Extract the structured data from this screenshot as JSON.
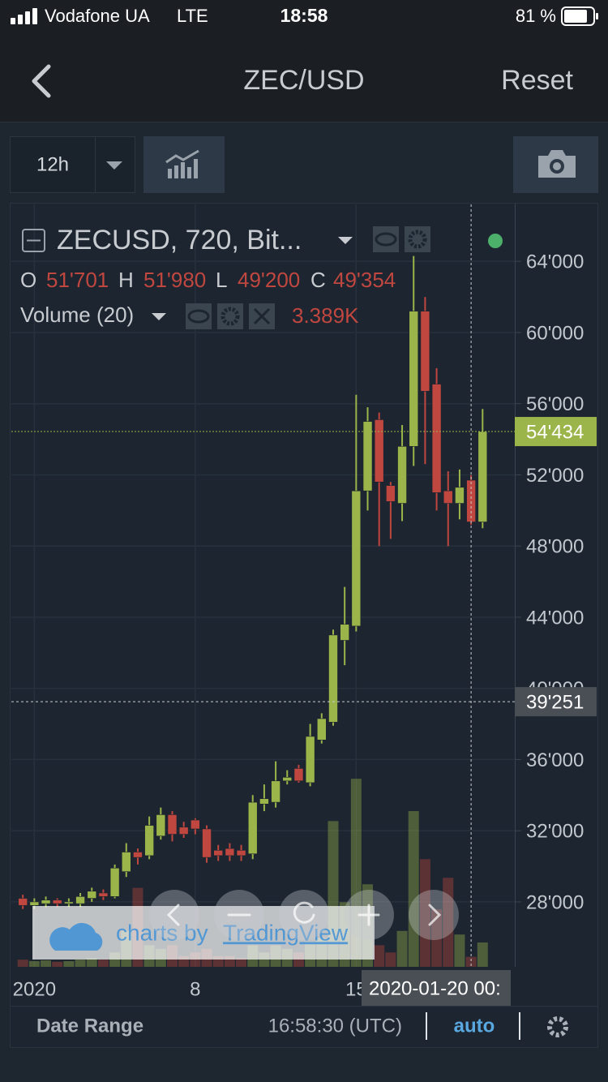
{
  "status_bar": {
    "carrier": "Vodafone UA",
    "network": "LTE",
    "time": "18:58",
    "battery": "81 %"
  },
  "header": {
    "title": "ZEC/USD",
    "reset": "Reset"
  },
  "toolbar": {
    "interval": "12h"
  },
  "chart_data": {
    "type": "candlestick",
    "title": "ZECUSD, 720, Bit...",
    "ohlc_legend": [
      {
        "name": "O",
        "label": "51'701"
      },
      {
        "name": "H",
        "label": "51'980"
      },
      {
        "name": "L",
        "label": "49'200"
      },
      {
        "name": "C",
        "label": "49'354"
      }
    ],
    "volume_label": "Volume (20)",
    "volume_value": "3.389K",
    "up_color": "#9bb54a",
    "down_color": "#c0473f",
    "x": [
      -0.5,
      0,
      0.5,
      1,
      1.5,
      2,
      2.5,
      3,
      3.5,
      4,
      4.5,
      5,
      5.5,
      6,
      6.5,
      7,
      7.5,
      8,
      8.5,
      9,
      9.5,
      10,
      10.5,
      11,
      11.5,
      12,
      12.5,
      13,
      13.5,
      14,
      14.5,
      15,
      15.5,
      16,
      16.5,
      17,
      17.5,
      18,
      18.5,
      19,
      19.5
    ],
    "open": [
      28200,
      27800,
      27900,
      28100,
      27900,
      27900,
      28200,
      28500,
      28300,
      29700,
      30800,
      30600,
      31700,
      32900,
      32200,
      32600,
      32100,
      30900,
      31000,
      30900,
      30700,
      33500,
      33600,
      34800,
      35500,
      34700,
      37100,
      38100,
      42700,
      43500,
      51100,
      55100,
      51400,
      50400,
      53600,
      61200,
      57100,
      51100,
      50400,
      51701,
      49354
    ],
    "high": [
      28400,
      28200,
      28300,
      28200,
      28200,
      28500,
      28800,
      28700,
      30100,
      31300,
      31000,
      32800,
      33300,
      33100,
      32500,
      32700,
      32300,
      31200,
      31300,
      31200,
      34000,
      34600,
      35900,
      35400,
      35700,
      38000,
      38600,
      43300,
      45700,
      56500,
      55800,
      55500,
      51600,
      54800,
      64300,
      62000,
      58000,
      52200,
      52300,
      51980,
      55700
    ],
    "low": [
      27600,
      27600,
      27700,
      27700,
      27700,
      27700,
      28000,
      28100,
      28200,
      29400,
      30100,
      30400,
      31500,
      31400,
      31600,
      31800,
      30200,
      30300,
      30300,
      30300,
      30400,
      33100,
      33300,
      34600,
      34700,
      34500,
      36900,
      37900,
      41300,
      43200,
      50000,
      48000,
      48400,
      49400,
      52500,
      52600,
      50000,
      48000,
      49500,
      49200,
      49000
    ],
    "close": [
      27800,
      28000,
      28100,
      27900,
      28000,
      28300,
      28600,
      28300,
      29900,
      30800,
      30500,
      32300,
      32900,
      31800,
      31800,
      32100,
      30500,
      30600,
      30600,
      30600,
      33600,
      33800,
      34800,
      35000,
      34800,
      37300,
      38300,
      43000,
      43600,
      51100,
      55000,
      51600,
      50500,
      53600,
      61200,
      56700,
      51000,
      50400,
      51300,
      49354,
      54434
    ],
    "volume": {
      "name": "Volume (20)",
      "values": [
        1.0,
        0.8,
        0.9,
        0.7,
        0.8,
        1.0,
        1.2,
        1.0,
        2.0,
        5.0,
        11.0,
        3.0,
        2.5,
        3.0,
        1.5,
        2.0,
        2.5,
        1.5,
        1.5,
        1.2,
        3.0,
        2.0,
        3.0,
        2.5,
        2.0,
        3.5,
        4.0,
        20.3,
        9.0,
        26.2,
        11.5,
        3.0,
        2.0,
        5.0,
        21.7,
        15.0,
        8.0,
        12.4,
        4.5,
        1.4,
        3.389
      ]
    },
    "xlim": [
      -1,
      20.9
    ],
    "xticks": [
      {
        "value": 0,
        "label": "2020"
      },
      {
        "value": 7,
        "label": "8"
      },
      {
        "value": 14,
        "label": "15"
      }
    ],
    "ylim": [
      24350,
      67200
    ],
    "yticks": [
      {
        "value": 28000,
        "label": "28'000"
      },
      {
        "value": 32000,
        "label": "32'000"
      },
      {
        "value": 36000,
        "label": "36'000"
      },
      {
        "value": 40000,
        "label": "40'000"
      },
      {
        "value": 44000,
        "label": "44'000"
      },
      {
        "value": 48000,
        "label": "48'000"
      },
      {
        "value": 52000,
        "label": "52'000"
      },
      {
        "value": 56000,
        "label": "56'000"
      },
      {
        "value": 60000,
        "label": "60'000"
      },
      {
        "value": 64000,
        "label": "64'000"
      }
    ],
    "grid": true,
    "last_price": {
      "value": 54434,
      "label": "54'434"
    },
    "crosshair": {
      "x": 19,
      "time": "2020-01-20 00:",
      "price": {
        "value": 39251,
        "label": "39'251"
      }
    },
    "watermark_prefix": "charts by",
    "watermark_link": "TradingView"
  },
  "footer": {
    "date_range": "Date Range",
    "time": "16:58:30 (UTC)",
    "auto": "auto"
  }
}
